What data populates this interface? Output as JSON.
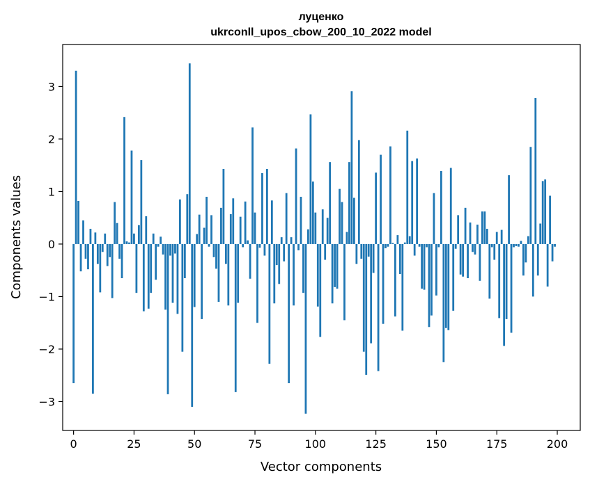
{
  "chart_data": {
    "type": "bar",
    "title": "луценко",
    "subtitle": "ukrconll_upos_cbow_200_10_2022 model",
    "xlabel": "Vector components",
    "ylabel": "Components values",
    "xlim": [
      -4.5,
      209.5
    ],
    "ylim": [
      -3.55,
      3.8
    ],
    "xticks": [
      0,
      25,
      50,
      75,
      100,
      125,
      150,
      175,
      200
    ],
    "yticks": [
      -3,
      -2,
      -1,
      0,
      1,
      2,
      3
    ],
    "ytick_labels": [
      "−3",
      "−2",
      "−1",
      "0",
      "1",
      "2",
      "3"
    ],
    "grid": false,
    "bar_color": "#1f77b4",
    "x": [
      0,
      1,
      2,
      3,
      4,
      5,
      6,
      7,
      8,
      9,
      10,
      11,
      12,
      13,
      14,
      15,
      16,
      17,
      18,
      19,
      20,
      21,
      22,
      23,
      24,
      25,
      26,
      27,
      28,
      29,
      30,
      31,
      32,
      33,
      34,
      35,
      36,
      37,
      38,
      39,
      40,
      41,
      42,
      43,
      44,
      45,
      46,
      47,
      48,
      49,
      50,
      51,
      52,
      53,
      54,
      55,
      56,
      57,
      58,
      59,
      60,
      61,
      62,
      63,
      64,
      65,
      66,
      67,
      68,
      69,
      70,
      71,
      72,
      73,
      74,
      75,
      76,
      77,
      78,
      79,
      80,
      81,
      82,
      83,
      84,
      85,
      86,
      87,
      88,
      89,
      90,
      91,
      92,
      93,
      94,
      95,
      96,
      97,
      98,
      99,
      100,
      101,
      102,
      103,
      104,
      105,
      106,
      107,
      108,
      109,
      110,
      111,
      112,
      113,
      114,
      115,
      116,
      117,
      118,
      119,
      120,
      121,
      122,
      123,
      124,
      125,
      126,
      127,
      128,
      129,
      130,
      131,
      132,
      133,
      134,
      135,
      136,
      137,
      138,
      139,
      140,
      141,
      142,
      143,
      144,
      145,
      146,
      147,
      148,
      149,
      150,
      151,
      152,
      153,
      154,
      155,
      156,
      157,
      158,
      159,
      160,
      161,
      162,
      163,
      164,
      165,
      166,
      167,
      168,
      169,
      170,
      171,
      172,
      173,
      174,
      175,
      176,
      177,
      178,
      179,
      180,
      181,
      182,
      183,
      184,
      185,
      186,
      187,
      188,
      189,
      190,
      191,
      192,
      193,
      194,
      195,
      196,
      197,
      198,
      199
    ],
    "values": [
      -2.65,
      3.3,
      0.82,
      -0.52,
      0.45,
      -0.28,
      -0.48,
      0.29,
      -2.85,
      0.22,
      -0.38,
      -0.92,
      -0.15,
      0.2,
      -0.42,
      -0.25,
      -1.03,
      0.8,
      0.4,
      -0.28,
      -0.65,
      2.42,
      0.05,
      0.03,
      1.78,
      0.2,
      -0.93,
      0.36,
      1.6,
      -1.28,
      0.53,
      -1.23,
      -0.93,
      0.2,
      -0.68,
      -0.05,
      0.14,
      -0.2,
      -1.25,
      -2.86,
      -0.22,
      -1.12,
      -0.18,
      -1.33,
      0.85,
      -2.05,
      -0.65,
      0.95,
      3.44,
      -3.1,
      -1.2,
      0.19,
      0.56,
      -1.43,
      0.31,
      0.9,
      -0.05,
      0.55,
      -0.25,
      -0.47,
      -1.1,
      0.69,
      1.43,
      -0.38,
      -1.17,
      0.57,
      0.87,
      -2.82,
      -1.12,
      0.52,
      -0.06,
      0.81,
      0.07,
      -0.66,
      2.22,
      0.6,
      -1.5,
      -0.07,
      1.35,
      -0.22,
      1.43,
      -2.28,
      0.83,
      -1.13,
      -0.4,
      -0.76,
      0.13,
      -0.33,
      0.97,
      -2.65,
      0.13,
      -1.17,
      1.82,
      -0.12,
      0.9,
      -0.93,
      -3.23,
      0.28,
      2.47,
      1.19,
      0.6,
      -1.19,
      -1.77,
      0.66,
      -0.3,
      0.5,
      1.56,
      -1.13,
      -0.82,
      -0.85,
      1.05,
      0.8,
      -1.45,
      0.23,
      1.56,
      2.91,
      0.88,
      -0.38,
      1.98,
      -0.28,
      -2.05,
      -2.49,
      -0.24,
      -1.89,
      -0.55,
      1.36,
      -2.42,
      1.7,
      -1.52,
      -0.08,
      -0.05,
      1.86,
      0.02,
      -1.38,
      0.17,
      -0.57,
      -1.65,
      0.03,
      2.16,
      0.15,
      1.58,
      -0.22,
      1.63,
      -0.05,
      -0.85,
      -0.87,
      -0.06,
      -1.58,
      -1.36,
      0.97,
      -0.98,
      -0.06,
      1.39,
      -2.25,
      -1.6,
      -1.64,
      1.45,
      -1.27,
      -0.09,
      0.55,
      -0.58,
      -0.62,
      0.69,
      -0.65,
      0.41,
      -0.15,
      -0.2,
      0.37,
      -0.7,
      0.62,
      0.62,
      0.29,
      -1.04,
      -0.06,
      -0.3,
      0.23,
      -1.41,
      0.27,
      -1.94,
      -1.43,
      1.31,
      -1.69,
      -0.06,
      -0.04,
      -0.05,
      0.06,
      -0.6,
      -0.35,
      0.15,
      1.85,
      -1.0,
      2.78,
      -0.6,
      0.39,
      1.2,
      1.23,
      -0.81,
      0.92,
      -0.33,
      -0.05
    ]
  }
}
